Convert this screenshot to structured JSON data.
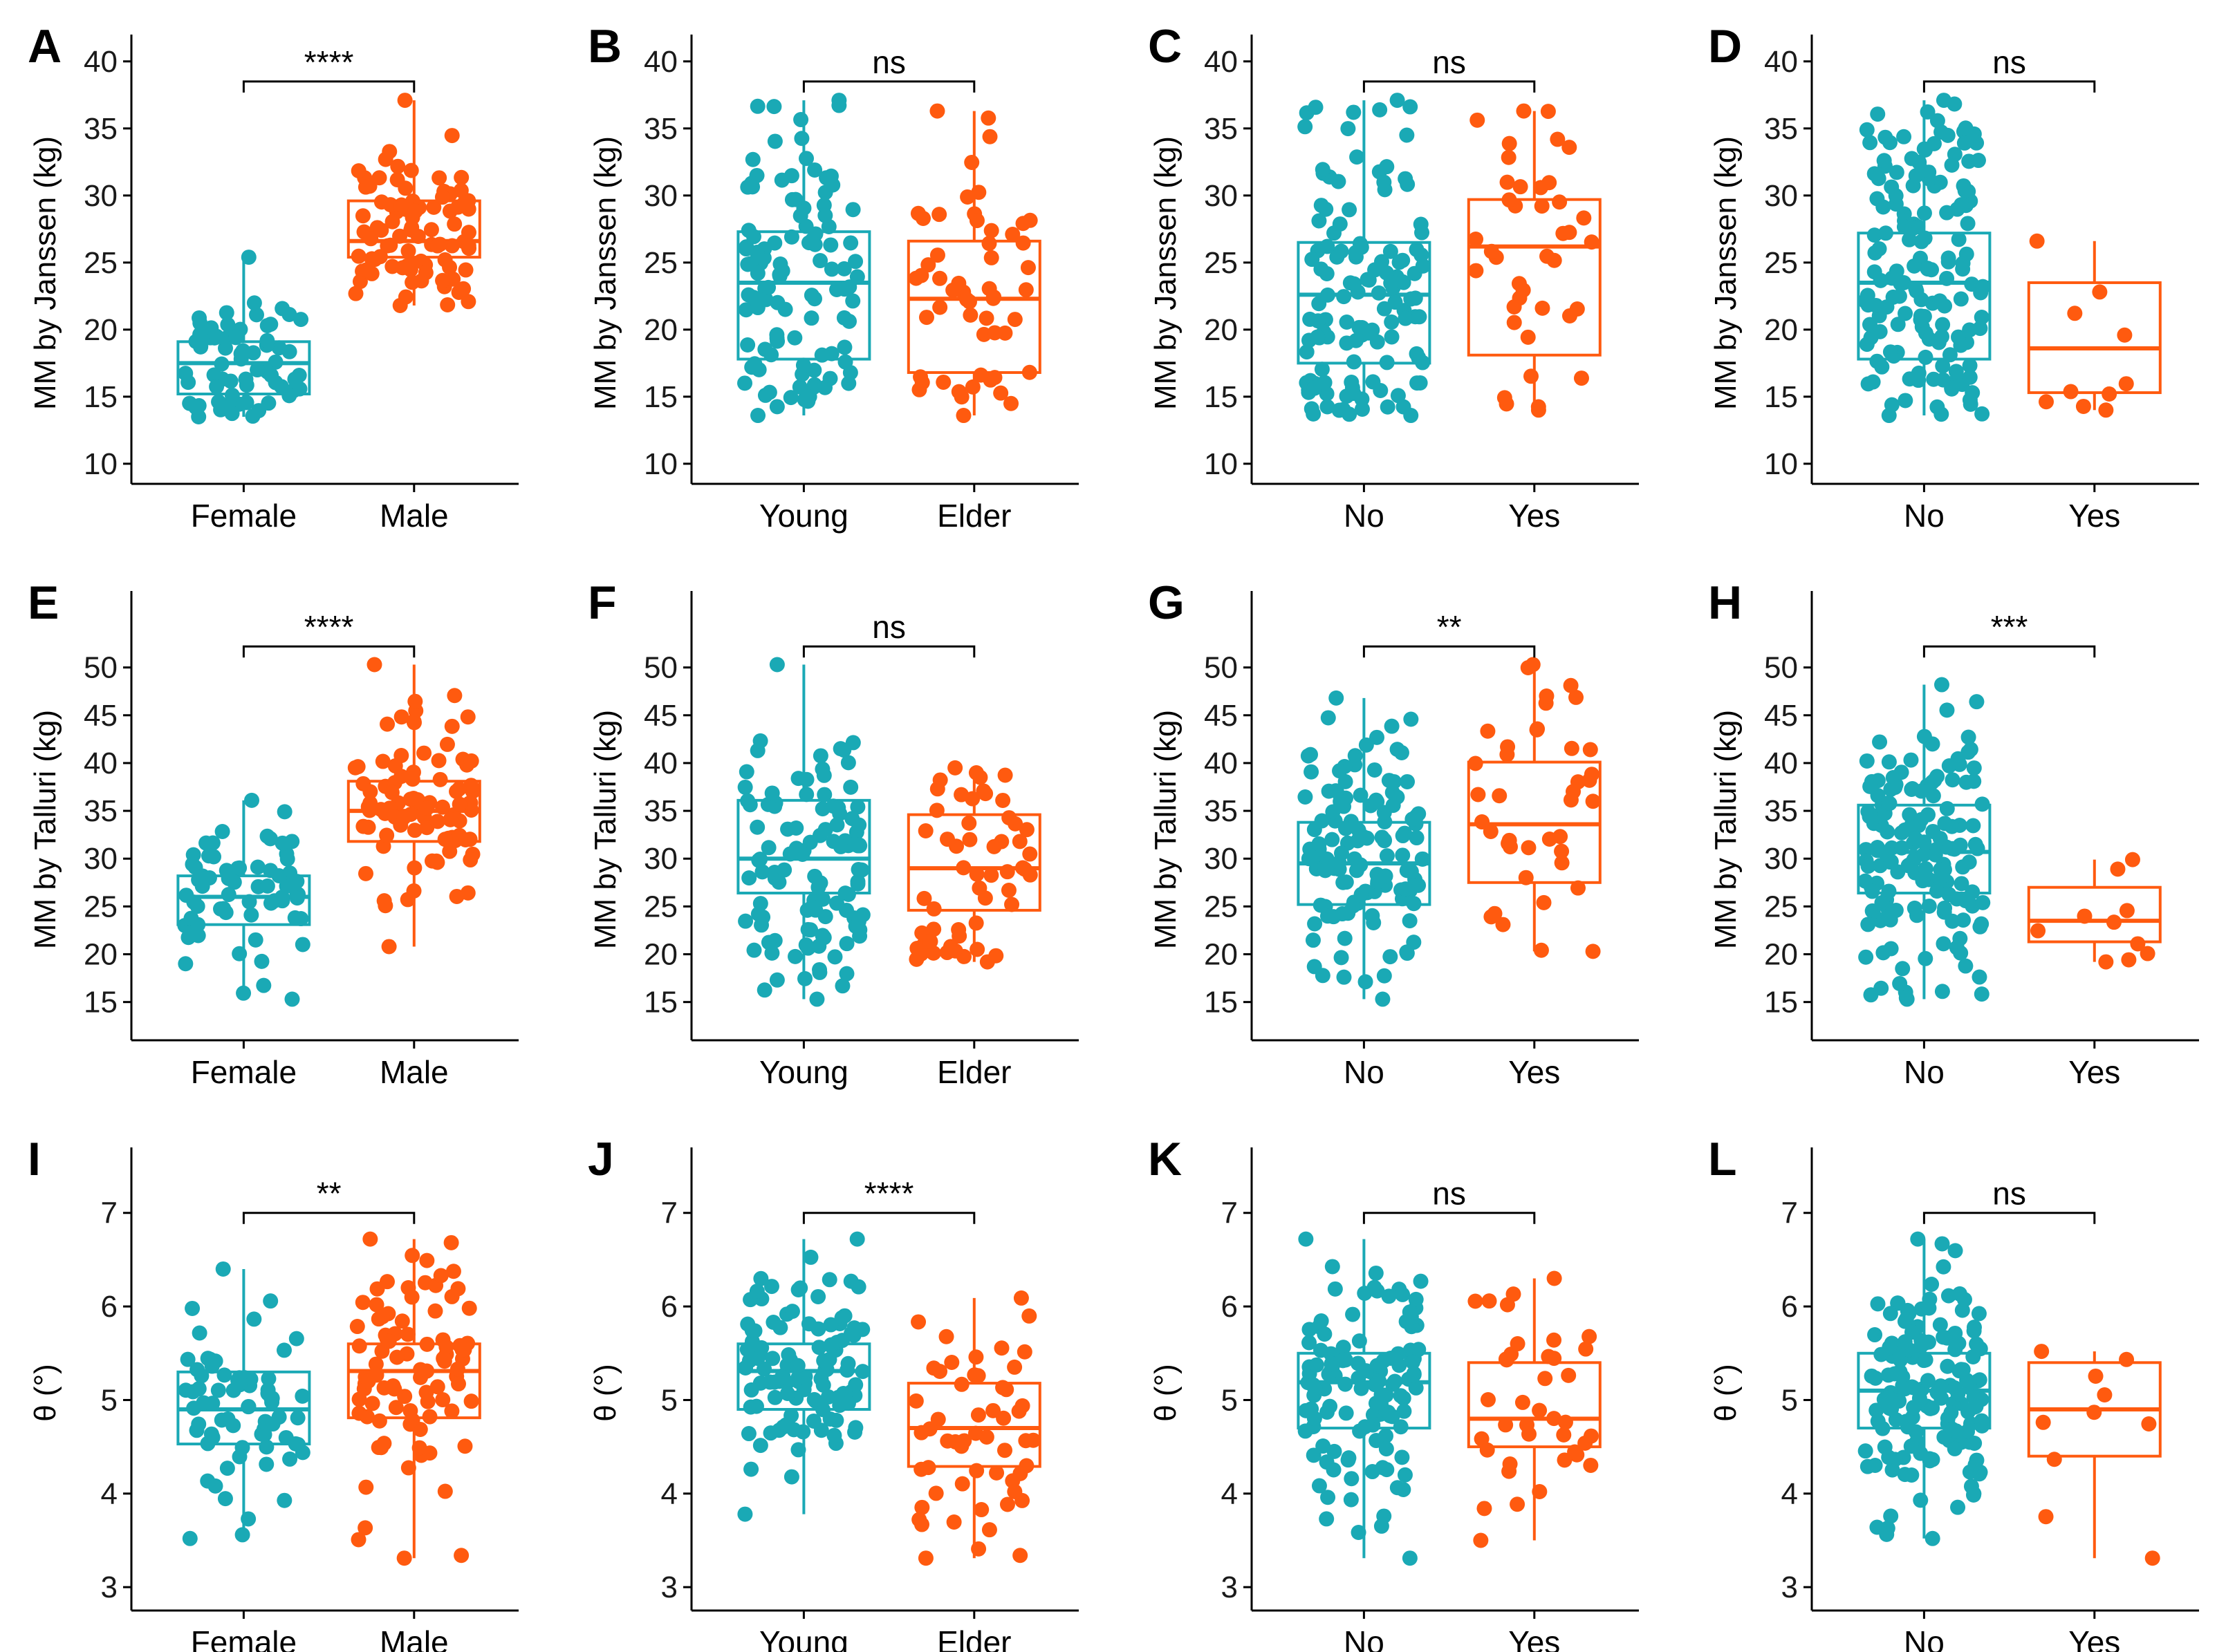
{
  "colors": {
    "group1": "#1aa9b5",
    "group2": "#ff5a0f",
    "axis": "#000000"
  },
  "figure": {
    "rows": [
      {
        "ylabel": "MM by Janssen (kg)",
        "ylim": [
          8.5,
          42
        ],
        "ticks": [
          10,
          15,
          20,
          25,
          30,
          35,
          40
        ],
        "bracket_y": 38.5
      },
      {
        "ylabel": "MM by Talluri (kg)",
        "ylim": [
          11,
          58
        ],
        "ticks": [
          15,
          20,
          25,
          30,
          35,
          40,
          45,
          50
        ],
        "bracket_y": 52.2
      },
      {
        "ylabel": "θ (°)",
        "ylim": [
          2.75,
          7.7
        ],
        "ticks": [
          3,
          4,
          5,
          6,
          7
        ],
        "bracket_y": 7.0
      }
    ]
  },
  "chart_data": [
    {
      "panel": "A",
      "type": "box",
      "row": 0,
      "categories": [
        "Female",
        "Male"
      ],
      "ylabel": "MM by Janssen (kg)",
      "significance": "****",
      "boxes": [
        {
          "name": "Female",
          "min": 13.5,
          "q1": 15.2,
          "median": 17.5,
          "q3": 19.1,
          "max": 25.4,
          "n": 70
        },
        {
          "name": "Male",
          "min": 21.8,
          "q1": 25.4,
          "median": 26.6,
          "q3": 29.6,
          "max": 37.1,
          "n": 90
        }
      ]
    },
    {
      "panel": "B",
      "type": "box",
      "row": 0,
      "categories": [
        "Young",
        "Elder"
      ],
      "ylabel": "MM by Janssen (kg)",
      "significance": "ns",
      "boxes": [
        {
          "name": "Young",
          "min": 13.6,
          "q1": 17.8,
          "median": 23.5,
          "q3": 27.3,
          "max": 37.1,
          "n": 110
        },
        {
          "name": "Elder",
          "min": 13.6,
          "q1": 16.8,
          "median": 22.3,
          "q3": 26.6,
          "max": 36.3,
          "n": 55
        }
      ]
    },
    {
      "panel": "C",
      "type": "box",
      "row": 0,
      "categories": [
        "No",
        "Yes"
      ],
      "ylabel": "MM by Janssen (kg)",
      "significance": "ns",
      "boxes": [
        {
          "name": "No",
          "min": 13.6,
          "q1": 17.5,
          "median": 22.6,
          "q3": 26.5,
          "max": 37.1,
          "n": 125
        },
        {
          "name": "Yes",
          "min": 14.0,
          "q1": 18.1,
          "median": 26.2,
          "q3": 29.7,
          "max": 36.3,
          "n": 40
        }
      ]
    },
    {
      "panel": "D",
      "type": "box",
      "row": 0,
      "categories": [
        "No",
        "Yes"
      ],
      "ylabel": "MM by Janssen (kg)",
      "significance": "ns",
      "boxes": [
        {
          "name": "No",
          "min": 13.6,
          "q1": 17.8,
          "median": 23.5,
          "q3": 27.2,
          "max": 37.1,
          "n": 155
        },
        {
          "name": "Yes",
          "min": 14.0,
          "q1": 15.3,
          "median": 18.6,
          "q3": 23.5,
          "max": 26.6,
          "n": 10
        }
      ]
    },
    {
      "panel": "E",
      "type": "box",
      "row": 1,
      "categories": [
        "Female",
        "Male"
      ],
      "ylabel": "MM by Talluri (kg)",
      "significance": "****",
      "boxes": [
        {
          "name": "Female",
          "min": 15.3,
          "q1": 23.1,
          "median": 26.0,
          "q3": 28.2,
          "max": 36.1,
          "n": 70
        },
        {
          "name": "Male",
          "min": 20.8,
          "q1": 31.8,
          "median": 35.0,
          "q3": 38.1,
          "max": 50.3,
          "n": 90
        }
      ]
    },
    {
      "panel": "F",
      "type": "box",
      "row": 1,
      "categories": [
        "Young",
        "Elder"
      ],
      "ylabel": "MM by Talluri (kg)",
      "significance": "ns",
      "boxes": [
        {
          "name": "Young",
          "min": 15.3,
          "q1": 26.4,
          "median": 30.0,
          "q3": 36.1,
          "max": 50.3,
          "n": 110
        },
        {
          "name": "Elder",
          "min": 19.2,
          "q1": 24.6,
          "median": 29.0,
          "q3": 34.6,
          "max": 39.5,
          "n": 55
        }
      ]
    },
    {
      "panel": "G",
      "type": "box",
      "row": 1,
      "categories": [
        "No",
        "Yes"
      ],
      "ylabel": "MM by Talluri (kg)",
      "significance": "**",
      "boxes": [
        {
          "name": "No",
          "min": 15.3,
          "q1": 25.2,
          "median": 29.5,
          "q3": 33.8,
          "max": 46.8,
          "n": 125
        },
        {
          "name": "Yes",
          "min": 20.3,
          "q1": 27.5,
          "median": 33.6,
          "q3": 40.1,
          "max": 50.3,
          "n": 40
        }
      ]
    },
    {
      "panel": "H",
      "type": "box",
      "row": 1,
      "categories": [
        "No",
        "Yes"
      ],
      "ylabel": "MM by Talluri (kg)",
      "significance": "***",
      "boxes": [
        {
          "name": "No",
          "min": 15.3,
          "q1": 26.4,
          "median": 30.7,
          "q3": 35.6,
          "max": 48.2,
          "n": 155
        },
        {
          "name": "Yes",
          "min": 19.2,
          "q1": 21.3,
          "median": 23.5,
          "q3": 27.0,
          "max": 29.9,
          "n": 10
        }
      ]
    },
    {
      "panel": "I",
      "type": "box",
      "row": 2,
      "categories": [
        "Female",
        "Male"
      ],
      "ylabel": "θ (°)",
      "significance": "**",
      "boxes": [
        {
          "name": "Female",
          "min": 3.52,
          "q1": 4.53,
          "median": 4.9,
          "q3": 5.3,
          "max": 6.4,
          "n": 70
        },
        {
          "name": "Male",
          "min": 3.31,
          "q1": 4.81,
          "median": 5.31,
          "q3": 5.6,
          "max": 6.72,
          "n": 90
        }
      ]
    },
    {
      "panel": "J",
      "type": "box",
      "row": 2,
      "categories": [
        "Young",
        "Elder"
      ],
      "ylabel": "θ (°)",
      "significance": "****",
      "boxes": [
        {
          "name": "Young",
          "min": 3.78,
          "q1": 4.9,
          "median": 5.31,
          "q3": 5.6,
          "max": 6.72,
          "n": 110
        },
        {
          "name": "Elder",
          "min": 3.31,
          "q1": 4.29,
          "median": 4.7,
          "q3": 5.18,
          "max": 6.09,
          "n": 55
        }
      ]
    },
    {
      "panel": "K",
      "type": "box",
      "row": 2,
      "categories": [
        "No",
        "Yes"
      ],
      "ylabel": "θ (°)",
      "significance": "ns",
      "boxes": [
        {
          "name": "No",
          "min": 3.31,
          "q1": 4.7,
          "median": 5.19,
          "q3": 5.5,
          "max": 6.72,
          "n": 125
        },
        {
          "name": "Yes",
          "min": 3.5,
          "q1": 4.5,
          "median": 4.8,
          "q3": 5.4,
          "max": 6.3,
          "n": 40
        }
      ]
    },
    {
      "panel": "L",
      "type": "box",
      "row": 2,
      "categories": [
        "No",
        "Yes"
      ],
      "ylabel": "θ (°)",
      "significance": "ns",
      "boxes": [
        {
          "name": "No",
          "min": 3.52,
          "q1": 4.7,
          "median": 5.1,
          "q3": 5.5,
          "max": 6.72,
          "n": 155
        },
        {
          "name": "Yes",
          "min": 3.31,
          "q1": 4.4,
          "median": 4.9,
          "q3": 5.4,
          "max": 5.52,
          "n": 10
        }
      ]
    }
  ]
}
